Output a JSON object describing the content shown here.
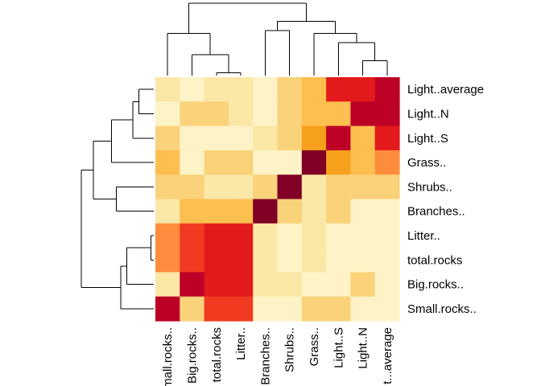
{
  "chart_data": {
    "type": "heatmap",
    "row_labels": [
      "Light..average",
      "Light..N",
      "Light..S",
      "Grass..",
      "Shrubs..",
      "Branches..",
      "Litter..",
      "total.rocks",
      "Big.rocks..",
      "Small.rocks.."
    ],
    "col_labels": [
      "Small.rocks..",
      "Big.rocks..",
      "total.rocks",
      "Litter..",
      "Branches..",
      "Shrubs..",
      "Grass..",
      "Light..S",
      "Light..N",
      "Light..average"
    ],
    "col_labels_display": [
      "mall.rocks..",
      "Big.rocks..",
      "total.rocks",
      "Litter..",
      "Branches..",
      "Shrubs..",
      "Grass..",
      "Light..S",
      "Light..N",
      "t...average"
    ],
    "values": [
      [
        0.8,
        0.91,
        0.82,
        0.82,
        0.9,
        0.72,
        0.62,
        0.22,
        0.22,
        0.14
      ],
      [
        0.88,
        0.72,
        0.72,
        0.82,
        0.9,
        0.72,
        0.62,
        0.62,
        0.06,
        0.14
      ],
      [
        0.72,
        0.9,
        0.9,
        0.9,
        0.8,
        0.72,
        0.48,
        0.1,
        0.62,
        0.22
      ],
      [
        0.62,
        0.9,
        0.72,
        0.72,
        0.9,
        0.9,
        0.03,
        0.48,
        0.62,
        0.38
      ],
      [
        0.74,
        0.74,
        0.82,
        0.82,
        0.72,
        0.0,
        0.82,
        0.66,
        0.66,
        0.66
      ],
      [
        0.82,
        0.62,
        0.62,
        0.62,
        0.0,
        0.72,
        0.82,
        0.72,
        0.86,
        0.86
      ],
      [
        0.38,
        0.3,
        0.2,
        0.2,
        0.82,
        0.9,
        0.82,
        0.88,
        0.86,
        0.86
      ],
      [
        0.38,
        0.3,
        0.2,
        0.2,
        0.82,
        0.9,
        0.82,
        0.88,
        0.86,
        0.86
      ],
      [
        0.78,
        0.14,
        0.2,
        0.2,
        0.82,
        0.82,
        0.9,
        0.9,
        0.72,
        0.86
      ],
      [
        0.1,
        0.74,
        0.3,
        0.3,
        0.9,
        0.9,
        0.74,
        0.74,
        0.9,
        0.86
      ]
    ],
    "color_scale": [
      "#800026",
      "#bd0026",
      "#e31a1c",
      "#f03b20",
      "#fd8d3c",
      "#f7a01c",
      "#fdbf4f",
      "#f9d27a",
      "#fbe7a6",
      "#fef3c6",
      "#ffffd4"
    ],
    "row_dendrogram": {
      "note": "order top-to-bottom matches row_labels",
      "merges": [
        {
          "a": 6,
          "b": 7,
          "height": 0.05
        },
        {
          "a": 0,
          "b": 1,
          "height": 0.25
        },
        {
          "a": "m2",
          "b": 2,
          "height": 0.35
        },
        {
          "a": "m1",
          "b": 8,
          "height": 0.45
        },
        {
          "a": "m4",
          "b": 9,
          "height": 0.55
        },
        {
          "a": 4,
          "b": 5,
          "height": 0.62
        },
        {
          "a": "m3",
          "b": 3,
          "height": 0.7
        },
        {
          "a": "m7",
          "b": "m6",
          "height": 1.0
        },
        {
          "a": "m8",
          "b": "m5",
          "height": 1.2
        }
      ]
    },
    "col_dendrogram": {
      "note": "order left-to-right matches col_labels",
      "merges": [
        {
          "a": 2,
          "b": 3,
          "height": 0.05
        },
        {
          "a": 8,
          "b": 9,
          "height": 0.25
        },
        {
          "a": 1,
          "b": "m1",
          "height": 0.35
        },
        {
          "a": 7,
          "b": "m2",
          "height": 0.55
        },
        {
          "a": 0,
          "b": "m3",
          "height": 0.7
        },
        {
          "a": 4,
          "b": 5,
          "height": 0.75
        },
        {
          "a": 6,
          "b": "m4",
          "height": 0.7
        },
        {
          "a": "m6",
          "b": "m7",
          "height": 0.9
        },
        {
          "a": "m5",
          "b": "m8",
          "height": 1.2
        }
      ]
    }
  }
}
